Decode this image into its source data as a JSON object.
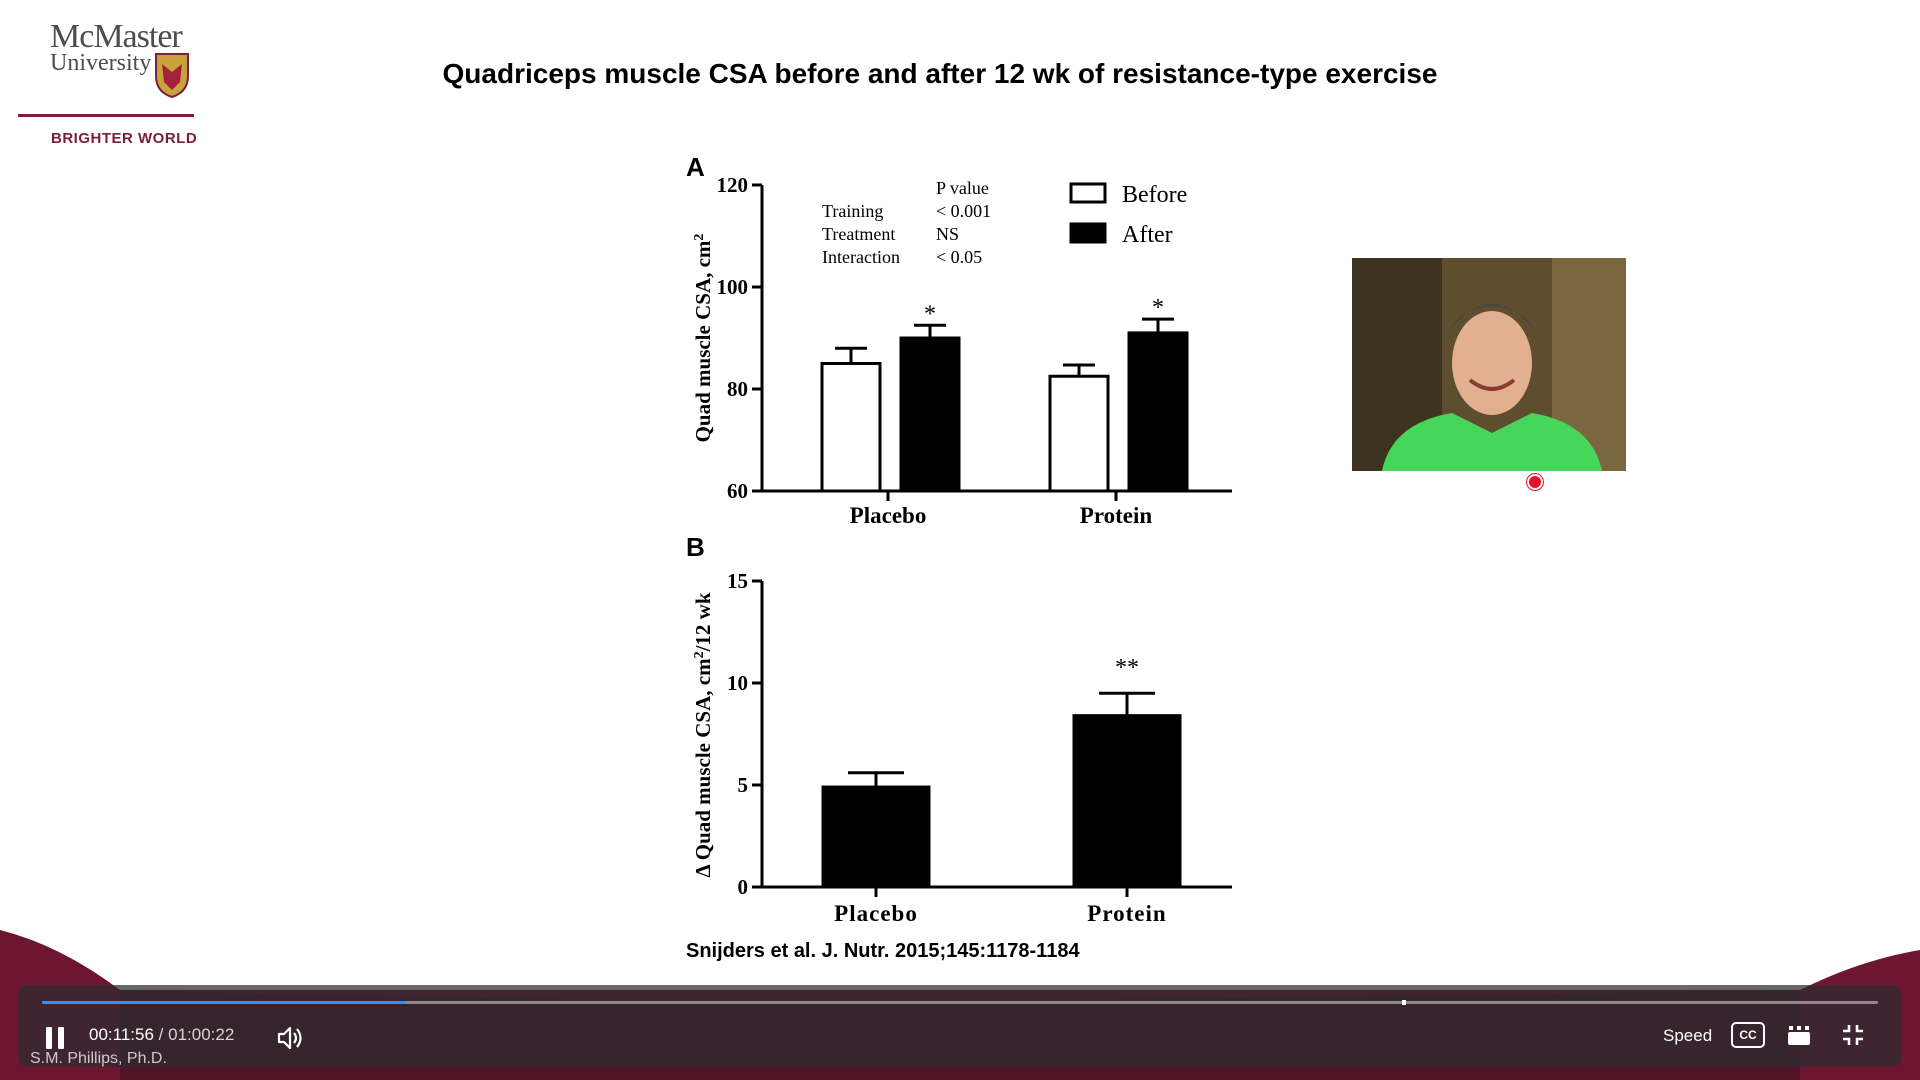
{
  "logo": {
    "line1": "McMaster",
    "line2": "University",
    "tagline": "BRIGHTER WORLD"
  },
  "slide": {
    "title": "Quadriceps muscle CSA before and after 12 wk of resistance-type exercise",
    "citation": "Snijders et al. J. Nutr. 2015;145:1178-1184"
  },
  "chart_data": [
    {
      "type": "bar",
      "panel": "A",
      "ylabel": "Quad muscle CSA, cm",
      "ylabel_sup": "2",
      "ylim": [
        60,
        120
      ],
      "yticks": [
        "60",
        "80",
        "100",
        "120"
      ],
      "categories": [
        "Placebo",
        "Protein"
      ],
      "series": [
        {
          "name": "Before",
          "values": [
            85,
            82.5
          ],
          "errors": [
            3,
            2.2
          ]
        },
        {
          "name": "After",
          "values": [
            90,
            91
          ],
          "errors": [
            2.5,
            2.7
          ]
        }
      ],
      "significance": [
        "*",
        "*"
      ],
      "legend_position": "top-right",
      "pvalue_table": {
        "header": "P value",
        "rows": [
          {
            "label": "Training",
            "value": "< 0.001"
          },
          {
            "label": "Treatment",
            "value": "NS"
          },
          {
            "label": "Interaction",
            "value": "< 0.05"
          }
        ]
      }
    },
    {
      "type": "bar",
      "panel": "B",
      "ylabel": "Δ Quad muscle CSA, cm",
      "ylabel_sup": "2",
      "ylabel_suffix": "/12 wk",
      "ylim": [
        0,
        15
      ],
      "yticks": [
        "0",
        "5",
        "10",
        "15"
      ],
      "categories": [
        "Placebo",
        "Protein"
      ],
      "values": [
        4.9,
        8.4
      ],
      "errors": [
        0.7,
        1.1
      ],
      "significance": [
        "",
        "**"
      ]
    }
  ],
  "player": {
    "current_time": "00:11:56",
    "separator": "/",
    "duration": "01:00:22",
    "progress": 0.198,
    "speed_label": "Speed",
    "cc_label": "CC",
    "presenter": "S.M. Phillips, Ph.D."
  },
  "colors": {
    "brand": "#7a1f3d",
    "progress": "#3b8ef0"
  }
}
